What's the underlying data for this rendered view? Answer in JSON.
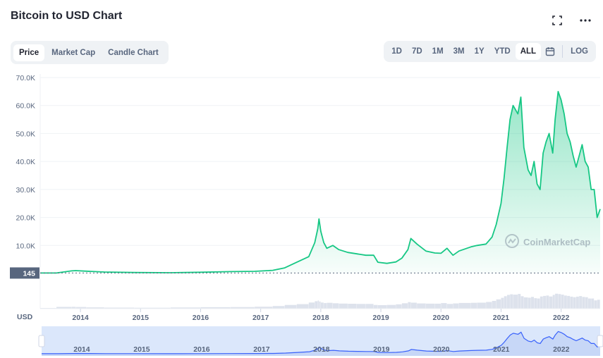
{
  "header": {
    "title": "Bitcoin to USD Chart",
    "fullscreen_icon": "expand-icon",
    "more_icon": "more-horizontal-icon"
  },
  "tabs": [
    {
      "label": "Price",
      "active": true
    },
    {
      "label": "Market Cap",
      "active": false
    },
    {
      "label": "Candle Chart",
      "active": false
    }
  ],
  "ranges": [
    {
      "label": "1D",
      "active": false
    },
    {
      "label": "7D",
      "active": false
    },
    {
      "label": "1M",
      "active": false
    },
    {
      "label": "3M",
      "active": false
    },
    {
      "label": "1Y",
      "active": false
    },
    {
      "label": "YTD",
      "active": false
    },
    {
      "label": "ALL",
      "active": true
    }
  ],
  "calendar_icon": "calendar-icon",
  "log_label": "LOG",
  "watermark": "CoinMarketCap",
  "currency_label": "USD",
  "start_price_label": "145",
  "colors": {
    "line": "#16c784",
    "navigator_fill": "#dbe7fb",
    "navigator_line": "#3861fb",
    "volume": "#cfd6e4"
  },
  "chart_data": {
    "type": "area",
    "title": "",
    "xlabel": "",
    "ylabel": "",
    "y_tick_labels": [
      "10.0K",
      "20.0K",
      "30.0K",
      "40.0K",
      "50.0K",
      "60.0K",
      "70.0K"
    ],
    "y_ticks": [
      10000,
      20000,
      30000,
      40000,
      50000,
      60000,
      70000
    ],
    "ylim": [
      0,
      70000
    ],
    "x_tick_labels": [
      "2014",
      "2015",
      "2016",
      "2017",
      "2018",
      "2019",
      "2020",
      "2021",
      "2022"
    ],
    "x_ticks": [
      2014,
      2015,
      2016,
      2017,
      2018,
      2019,
      2020,
      2021,
      2022
    ],
    "xlim": [
      2013.33,
      2022.65
    ],
    "baseline_price": 145,
    "grid": true,
    "series": [
      {
        "x": [
          2013.33,
          2013.6,
          2013.85,
          2013.92,
          2014.1,
          2014.4,
          2014.9,
          2015.5,
          2016.0,
          2016.5,
          2016.9,
          2017.2,
          2017.4,
          2017.6,
          2017.8,
          2017.9,
          2017.95,
          2017.97,
          2018.0,
          2018.05,
          2018.1,
          2018.2,
          2018.3,
          2018.45,
          2018.6,
          2018.75,
          2018.88,
          2018.95,
          2019.1,
          2019.25,
          2019.35,
          2019.45,
          2019.5,
          2019.6,
          2019.75,
          2019.9,
          2020.0,
          2020.1,
          2020.2,
          2020.3,
          2020.5,
          2020.6,
          2020.75,
          2020.85,
          2020.92,
          2021.0,
          2021.05,
          2021.1,
          2021.15,
          2021.2,
          2021.28,
          2021.33,
          2021.38,
          2021.45,
          2021.5,
          2021.55,
          2021.6,
          2021.65,
          2021.7,
          2021.75,
          2021.8,
          2021.86,
          2021.9,
          2021.95,
          2022.0,
          2022.05,
          2022.1,
          2022.15,
          2022.2,
          2022.25,
          2022.3,
          2022.35,
          2022.4,
          2022.45,
          2022.5,
          2022.55,
          2022.6,
          2022.65
        ],
        "y": [
          145,
          140,
          900,
          1000,
          800,
          500,
          320,
          250,
          430,
          650,
          750,
          1100,
          2000,
          4000,
          6000,
          11000,
          16000,
          19500,
          15000,
          11000,
          9000,
          10000,
          8500,
          7500,
          7000,
          6500,
          6500,
          4000,
          3600,
          4100,
          5500,
          8500,
          12500,
          10500,
          8000,
          7300,
          7200,
          9000,
          6500,
          8000,
          9500,
          10000,
          10500,
          13000,
          17500,
          25000,
          34000,
          45000,
          55000,
          60000,
          57000,
          63000,
          45000,
          37000,
          35000,
          40000,
          32000,
          30000,
          43000,
          47000,
          50000,
          43000,
          55000,
          65000,
          62000,
          57000,
          50000,
          47000,
          42000,
          38000,
          42000,
          46000,
          40000,
          38000,
          30000,
          30000,
          20000,
          23000
        ]
      }
    ]
  }
}
